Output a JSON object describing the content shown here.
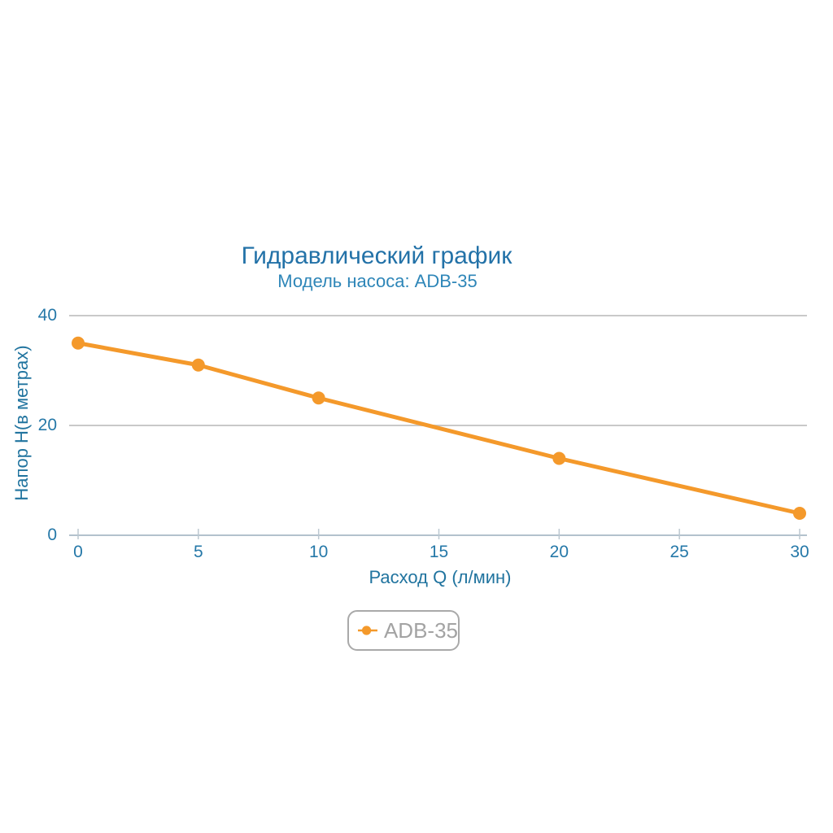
{
  "chart_data": {
    "type": "line",
    "title": "Гидравлический график",
    "subtitle": "Модель насоса: ADB-35",
    "xlabel": "Расход Q (л/мин)",
    "ylabel": "Напор H(в метрах)",
    "series": [
      {
        "name": "ADB-35",
        "x": [
          0,
          5,
          10,
          20,
          30
        ],
        "y": [
          35,
          31,
          25,
          14,
          4
        ],
        "color": "#F4992B",
        "marker": "circle"
      }
    ],
    "x_ticks": [
      0,
      5,
      10,
      15,
      20,
      25,
      30
    ],
    "y_ticks": [
      0,
      20,
      40
    ],
    "xlim": [
      -0.4,
      30.3
    ],
    "ylim": [
      0,
      41.5
    ],
    "grid": "horizontal-only",
    "legend_position": "bottom-center"
  },
  "legend": {
    "label": "ADB-35"
  },
  "colors": {
    "background": "#FFFFFF",
    "title": "#2372A8",
    "subtitle": "#2E86B8",
    "axis_text": "#2578A8",
    "axis_title": "#21749F",
    "gridline": "#C9C9C9",
    "axis_line": "#B3C2CD",
    "tick_mark": "#BCC8D1",
    "series_line": "#F4992B",
    "legend_border": "#A9A9A9",
    "legend_text": "#A3A3A3"
  }
}
